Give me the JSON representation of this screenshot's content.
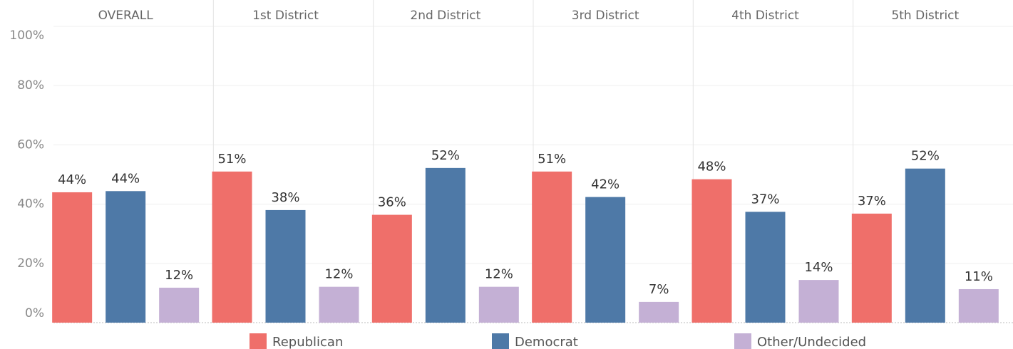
{
  "chart_data": {
    "type": "bar",
    "categories": [
      "OVERALL",
      "1st District",
      "2nd District",
      "3rd District",
      "4th District",
      "5th District"
    ],
    "series": [
      {
        "name": "Republican",
        "color": "#ef6f6a",
        "values": [
          44.0,
          51.0,
          36.4,
          51.0,
          48.4,
          36.8
        ],
        "value_labels": [
          "44%",
          "51%",
          "36%",
          "51%",
          "48%",
          "37%"
        ]
      },
      {
        "name": "Democrat",
        "color": "#4e79a7",
        "values": [
          44.4,
          38.0,
          52.2,
          42.4,
          37.4,
          52.0
        ],
        "value_labels": [
          "44%",
          "38%",
          "52%",
          "42%",
          "37%",
          "52%"
        ]
      },
      {
        "name": "Other/Undecided",
        "color": "#c4b0d5",
        "values": [
          11.8,
          12.1,
          12.1,
          7.0,
          14.4,
          11.3
        ],
        "value_labels": [
          "12%",
          "12%",
          "12%",
          "7%",
          "14%",
          "11%"
        ]
      }
    ],
    "ylim": [
      0,
      100
    ],
    "yticks": [
      {
        "value": 0,
        "label": "0%"
      },
      {
        "value": 20,
        "label": "20%"
      },
      {
        "value": 40,
        "label": "40%"
      },
      {
        "value": 60,
        "label": "60%"
      },
      {
        "value": 80,
        "label": "80%"
      },
      {
        "value": 100,
        "label": "100%"
      }
    ],
    "grid": true
  }
}
